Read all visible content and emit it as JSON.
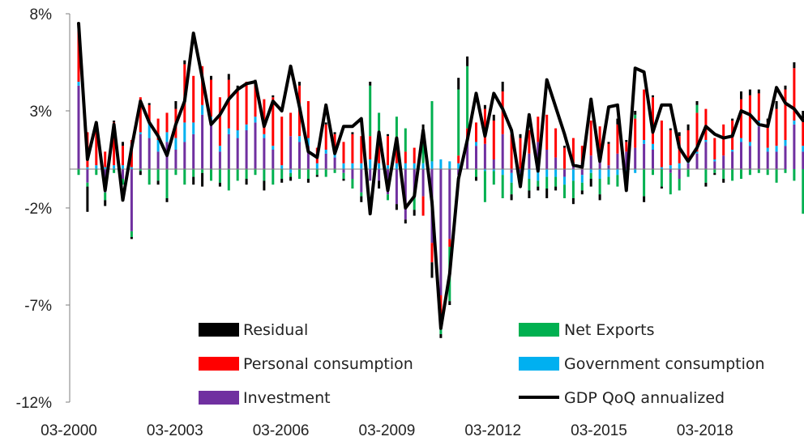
{
  "chart_data": {
    "type": "bar",
    "stacked": true,
    "title": "",
    "xlabel": "",
    "ylabel": "",
    "ylim": [
      -12,
      8
    ],
    "y_ticks": [
      "8%",
      "3%",
      "-2%",
      "-7%",
      "-12%"
    ],
    "y_tick_values": [
      8,
      3,
      -2,
      -7,
      -12
    ],
    "x_tick_labels": [
      "03-2000",
      "03-2003",
      "03-2006",
      "03-2009",
      "03-2012",
      "03-2015",
      "03-2018"
    ],
    "x_tick_positions": [
      0,
      12,
      24,
      36,
      48,
      60,
      72
    ],
    "x_start": "03-2000",
    "period": "quarter",
    "grid": false,
    "legend_position": "bottom-center",
    "legend": [
      {
        "name": "Residual",
        "color": "#000000",
        "kind": "bar"
      },
      {
        "name": "Net Exports",
        "color": "#00b050",
        "kind": "bar"
      },
      {
        "name": "Personal consumption",
        "color": "#ff0000",
        "kind": "bar"
      },
      {
        "name": "Government consumption",
        "color": "#00b0f0",
        "kind": "bar"
      },
      {
        "name": "Investment",
        "color": "#7030a0",
        "kind": "bar"
      },
      {
        "name": "GDP QoQ annualized",
        "color": "#000000",
        "kind": "line"
      }
    ],
    "components": {
      "investment": [
        4.3,
        -0.7,
        0,
        -1.2,
        0,
        -0.5,
        -3.2,
        1.8,
        1.6,
        0.9,
        1.4,
        1.0,
        1.4,
        1.8,
        2.8,
        2.3,
        0.9,
        1.8,
        1.6,
        2.0,
        2.4,
        1.6,
        1.0,
        0,
        1.7,
        1.4,
        1.2,
        0,
        0.8,
        0.6,
        -0.2,
        -0.5,
        -1.2,
        -0.6,
        -0.6,
        -1.3,
        -1.8,
        -2.6,
        -1.2,
        -1.4,
        -3.8,
        -6.5,
        -3.6,
        -0.3,
        1.4,
        1.2,
        1.3,
        0.5,
        1.8,
        -0.2,
        -0.2,
        0.8,
        1.4,
        1.0,
        0.6,
        -0.4,
        0.3,
        -0.3,
        0.7,
        1.0,
        0.2,
        0.8,
        0.9,
        1.1,
        1.3,
        1.0,
        0,
        -0.2,
        -0.5,
        0.3,
        0.8,
        1.4,
        0.4,
        0.7,
        0.9,
        1.4,
        1.2,
        2.2,
        0.9,
        0.9,
        1.2,
        2.3,
        0.9
      ],
      "government_consumption": [
        0.2,
        0.1,
        0.2,
        0.1,
        0.2,
        0.2,
        0.1,
        0.1,
        0.8,
        0.6,
        0.5,
        0.6,
        1.0,
        0.6,
        0.5,
        0.4,
        0.3,
        0.3,
        0.4,
        0.3,
        0.3,
        0.2,
        0.2,
        0.2,
        -0.2,
        0.3,
        0.4,
        0.3,
        0.2,
        0.2,
        0.3,
        0.3,
        0.3,
        0.5,
        0.3,
        0.2,
        0.3,
        0.3,
        0.3,
        0.3,
        0.4,
        0.5,
        0.4,
        0.3,
        0.2,
        0.2,
        -0.1,
        -0.1,
        -0.3,
        -0.5,
        -0.3,
        -0.5,
        -0.6,
        -0.4,
        -0.4,
        -0.4,
        -0.6,
        -0.4,
        -0.2,
        -0.5,
        -0.4,
        -0.3,
        -0.2,
        -0.2,
        0.2,
        0.3,
        0.1,
        0.2,
        0.3,
        0.2,
        0.1,
        0.1,
        0.1,
        0.0,
        0.1,
        0.2,
        0.2,
        0.3,
        0.2,
        0.3,
        0.3,
        0.2,
        0.3
      ],
      "personal_consumption": [
        2.6,
        1.8,
        1.8,
        0.8,
        2.2,
        1.0,
        1.4,
        1.8,
        0.9,
        1.1,
        1.0,
        1.5,
        3.0,
        2.4,
        2.0,
        1.9,
        2.5,
        2.5,
        2.1,
        2.2,
        1.8,
        1.8,
        2.5,
        2.5,
        1.2,
        2.6,
        1.9,
        0.8,
        1.3,
        1.0,
        1.1,
        1.5,
        1.4,
        1.2,
        1.2,
        1.5,
        1.1,
        0.6,
        0.8,
        -1.0,
        -1.0,
        -1.1,
        -0.4,
        0.4,
        0.5,
        1.0,
        1.8,
        2.0,
        2.2,
        1.8,
        1.6,
        1.2,
        1.3,
        1.8,
        1.5,
        1.1,
        1.3,
        1.2,
        1.8,
        1.2,
        1.1,
        1.5,
        0.5,
        1.5,
        2.6,
        2.4,
        2.4,
        1.8,
        1.4,
        1.5,
        2.0,
        1.6,
        1.1,
        1.6,
        1.5,
        2.0,
        2.4,
        1.4,
        1.3,
        1.9,
        2.6,
        2.7,
        1.4
      ],
      "net_exports": [
        -0.3,
        -0.2,
        -0.3,
        -0.4,
        -0.2,
        -0.3,
        -0.3,
        -0.1,
        -0.8,
        -0.6,
        -1.5,
        -0.3,
        -0.8,
        -0.4,
        -0.2,
        -0.6,
        -0.7,
        -1.1,
        -0.6,
        -0.5,
        -0.3,
        -0.6,
        -0.8,
        -0.5,
        -0.2,
        -0.5,
        -0.5,
        -0.3,
        -0.4,
        -0.2,
        -0.3,
        -0.5,
        -0.2,
        2.6,
        1.4,
        -0.3,
        1.3,
        1.2,
        -0.9,
        1.7,
        3.1,
        -0.9,
        -2.8,
        3.4,
        3.2,
        -0.4,
        -1.6,
        -0.7,
        -1.2,
        -0.6,
        -0.4,
        -0.6,
        -0.3,
        -0.6,
        -0.5,
        -0.7,
        -0.9,
        -0.4,
        -0.3,
        -0.8,
        -0.4,
        -0.6,
        -0.5,
        0.2,
        -1.4,
        -0.3,
        -0.9,
        -1.1,
        -0.6,
        -0.4,
        0.4,
        -0.7,
        -0.2,
        -0.5,
        -0.6,
        -0.5,
        -0.3,
        -0.2,
        -0.3,
        -0.7,
        -0.2,
        -0.6,
        -2.3
      ],
      "residual": [
        0.4,
        -1.3,
        0.3,
        -0.3,
        0.1,
        0.2,
        -0.1,
        -0.2,
        0.1,
        -0.2,
        -0.2,
        0.4,
        0.2,
        -0.4,
        -0.7,
        0.2,
        -0.2,
        0.3,
        0.2,
        -0.3,
        0.1,
        -0.5,
        0.1,
        -0.2,
        -0.2,
        0.2,
        -0.2,
        -0.1,
        0.1,
        0.1,
        -0.1,
        0.1,
        -0.3,
        0.2,
        -0.4,
        0.1,
        -0.3,
        -0.2,
        -0.3,
        0.3,
        -0.8,
        -0.2,
        -0.2,
        0.6,
        0.5,
        -0.2,
        0.2,
        0.3,
        0.5,
        -0.3,
        0.2,
        -0.4,
        -0.2,
        -0.5,
        -0.2,
        0.1,
        -0.3,
        -0.2,
        -0.4,
        -0.3,
        0.1,
        0.3,
        0.1,
        0.2,
        -0.3,
        0.1,
        -0.1,
        0.1,
        0.2,
        0.3,
        0.2,
        -0.2,
        -0.1,
        -0.2,
        0.1,
        0.4,
        0.3,
        0.2,
        0.2,
        0.4,
        0.2,
        0.3,
        0.4
      ]
    },
    "gdp_qoq_annualized": [
      7.5,
      0.5,
      2.4,
      -1.1,
      2.3,
      -1.6,
      1.1,
      3.5,
      2.4,
      1.7,
      0.7,
      2.3,
      3.5,
      7.0,
      4.7,
      2.3,
      2.8,
      3.6,
      4.1,
      4.4,
      4.5,
      2.2,
      3.5,
      3.0,
      5.3,
      3.2,
      0.9,
      0.6,
      3.3,
      0.8,
      2.2,
      2.2,
      2.6,
      -2.3,
      1.9,
      -1.1,
      1.6,
      -2.0,
      -1.4,
      2.0,
      -1.7,
      -8.2,
      -5.4,
      -0.5,
      1.5,
      3.9,
      1.7,
      3.9,
      3.1,
      2.0,
      -0.9,
      2.8,
      -0.1,
      4.6,
      3.2,
      1.8,
      0.2,
      0.1,
      3.6,
      0.4,
      3.2,
      3.3,
      -1.1,
      5.2,
      5.0,
      1.9,
      3.3,
      3.3,
      1.1,
      0.4,
      1.1,
      2.2,
      1.8,
      1.6,
      1.7,
      3.0,
      2.8,
      2.3,
      2.2,
      4.2,
      3.4,
      3.1,
      2.5
    ]
  }
}
